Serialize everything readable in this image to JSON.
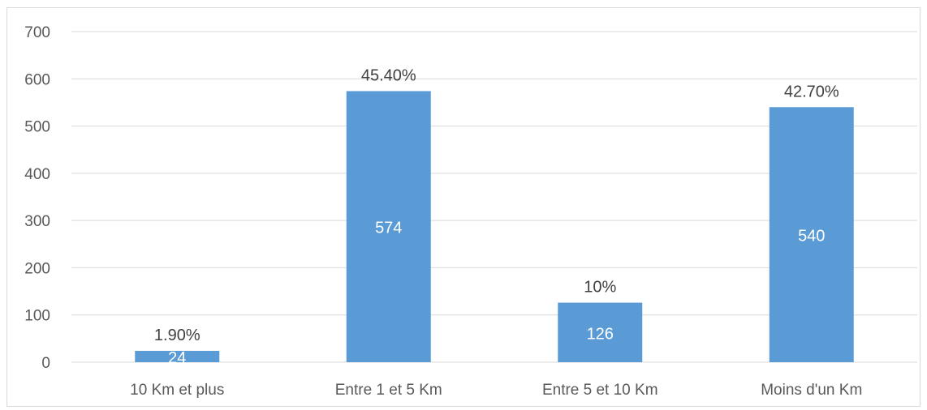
{
  "chart_data": {
    "type": "bar",
    "categories": [
      "10 Km et plus",
      "Entre 1 et 5 Km",
      "Entre 5 et 10 Km",
      "Moins d'un Km"
    ],
    "values": [
      24,
      574,
      126,
      540
    ],
    "value_labels": [
      "24",
      "574",
      "126",
      "540"
    ],
    "percent_labels": [
      "1.90%",
      "45.40%",
      "10%",
      "42.70%"
    ],
    "ylim": [
      0,
      700
    ],
    "yticks": [
      "0",
      "100",
      "200",
      "300",
      "400",
      "500",
      "600",
      "700"
    ],
    "title": "",
    "xlabel": "",
    "ylabel": "",
    "grid": true,
    "legend": "none",
    "bar_color": "#5B9BD5",
    "grid_color": "#d9d9d9"
  }
}
